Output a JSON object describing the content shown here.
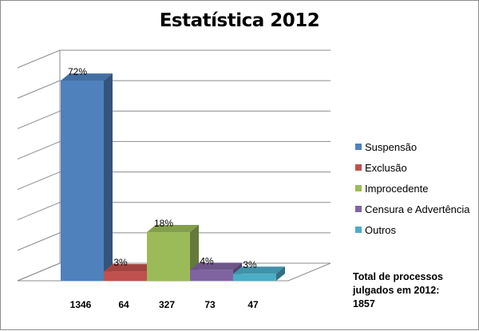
{
  "chart_data": {
    "type": "bar",
    "title": "Estatística 2012",
    "categories": [
      "Suspensão",
      "Exclusão",
      "Improcedente",
      "Censura e Advertência",
      "Outros"
    ],
    "values": [
      1346,
      64,
      327,
      73,
      47
    ],
    "percent_labels": [
      "72%",
      "3%",
      "18%",
      "4%",
      "3%"
    ],
    "value_labels": [
      "1346",
      "64",
      "327",
      "73",
      "47"
    ],
    "colors": [
      "#4f81bd",
      "#c0504d",
      "#9bbb59",
      "#8064a2",
      "#4bacc6"
    ],
    "ylim": [
      0,
      1400
    ],
    "grid": true,
    "legend_position": "right",
    "legend": [
      "Suspensão",
      "Exclusão",
      "Improcedente",
      "Censura e Advertência",
      "Outros"
    ],
    "annotation": {
      "line1": "Total de processos",
      "line2": "julgados em 2012:",
      "line3": "1857"
    }
  }
}
